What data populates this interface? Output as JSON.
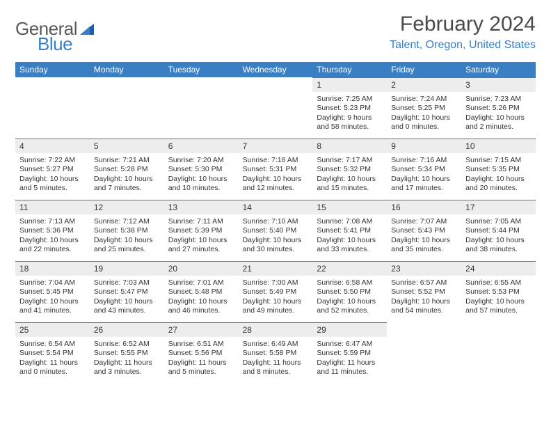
{
  "logo": {
    "text1": "General",
    "text2": "Blue",
    "color1": "#5a5a5a",
    "color2": "#3a7fc4"
  },
  "header": {
    "month": "February 2024",
    "location": "Talent, Oregon, United States"
  },
  "calendar": {
    "type": "table",
    "header_bg": "#3a7fc4",
    "header_text_color": "#ffffff",
    "daynum_bg": "#ededed",
    "daynum_border": "#3a7fc4",
    "text_color": "#333333",
    "background_color": "#ffffff",
    "font_family": "Arial",
    "daynum_fontsize": 12,
    "body_fontsize": 10.5,
    "days_of_week": [
      "Sunday",
      "Monday",
      "Tuesday",
      "Wednesday",
      "Thursday",
      "Friday",
      "Saturday"
    ],
    "weeks": [
      [
        {
          "empty": true
        },
        {
          "empty": true
        },
        {
          "empty": true
        },
        {
          "empty": true
        },
        {
          "num": "1",
          "sunrise": "Sunrise: 7:25 AM",
          "sunset": "Sunset: 5:23 PM",
          "daylight1": "Daylight: 9 hours",
          "daylight2": "and 58 minutes."
        },
        {
          "num": "2",
          "sunrise": "Sunrise: 7:24 AM",
          "sunset": "Sunset: 5:25 PM",
          "daylight1": "Daylight: 10 hours",
          "daylight2": "and 0 minutes."
        },
        {
          "num": "3",
          "sunrise": "Sunrise: 7:23 AM",
          "sunset": "Sunset: 5:26 PM",
          "daylight1": "Daylight: 10 hours",
          "daylight2": "and 2 minutes."
        }
      ],
      [
        {
          "num": "4",
          "sunrise": "Sunrise: 7:22 AM",
          "sunset": "Sunset: 5:27 PM",
          "daylight1": "Daylight: 10 hours",
          "daylight2": "and 5 minutes."
        },
        {
          "num": "5",
          "sunrise": "Sunrise: 7:21 AM",
          "sunset": "Sunset: 5:28 PM",
          "daylight1": "Daylight: 10 hours",
          "daylight2": "and 7 minutes."
        },
        {
          "num": "6",
          "sunrise": "Sunrise: 7:20 AM",
          "sunset": "Sunset: 5:30 PM",
          "daylight1": "Daylight: 10 hours",
          "daylight2": "and 10 minutes."
        },
        {
          "num": "7",
          "sunrise": "Sunrise: 7:18 AM",
          "sunset": "Sunset: 5:31 PM",
          "daylight1": "Daylight: 10 hours",
          "daylight2": "and 12 minutes."
        },
        {
          "num": "8",
          "sunrise": "Sunrise: 7:17 AM",
          "sunset": "Sunset: 5:32 PM",
          "daylight1": "Daylight: 10 hours",
          "daylight2": "and 15 minutes."
        },
        {
          "num": "9",
          "sunrise": "Sunrise: 7:16 AM",
          "sunset": "Sunset: 5:34 PM",
          "daylight1": "Daylight: 10 hours",
          "daylight2": "and 17 minutes."
        },
        {
          "num": "10",
          "sunrise": "Sunrise: 7:15 AM",
          "sunset": "Sunset: 5:35 PM",
          "daylight1": "Daylight: 10 hours",
          "daylight2": "and 20 minutes."
        }
      ],
      [
        {
          "num": "11",
          "sunrise": "Sunrise: 7:13 AM",
          "sunset": "Sunset: 5:36 PM",
          "daylight1": "Daylight: 10 hours",
          "daylight2": "and 22 minutes."
        },
        {
          "num": "12",
          "sunrise": "Sunrise: 7:12 AM",
          "sunset": "Sunset: 5:38 PM",
          "daylight1": "Daylight: 10 hours",
          "daylight2": "and 25 minutes."
        },
        {
          "num": "13",
          "sunrise": "Sunrise: 7:11 AM",
          "sunset": "Sunset: 5:39 PM",
          "daylight1": "Daylight: 10 hours",
          "daylight2": "and 27 minutes."
        },
        {
          "num": "14",
          "sunrise": "Sunrise: 7:10 AM",
          "sunset": "Sunset: 5:40 PM",
          "daylight1": "Daylight: 10 hours",
          "daylight2": "and 30 minutes."
        },
        {
          "num": "15",
          "sunrise": "Sunrise: 7:08 AM",
          "sunset": "Sunset: 5:41 PM",
          "daylight1": "Daylight: 10 hours",
          "daylight2": "and 33 minutes."
        },
        {
          "num": "16",
          "sunrise": "Sunrise: 7:07 AM",
          "sunset": "Sunset: 5:43 PM",
          "daylight1": "Daylight: 10 hours",
          "daylight2": "and 35 minutes."
        },
        {
          "num": "17",
          "sunrise": "Sunrise: 7:05 AM",
          "sunset": "Sunset: 5:44 PM",
          "daylight1": "Daylight: 10 hours",
          "daylight2": "and 38 minutes."
        }
      ],
      [
        {
          "num": "18",
          "sunrise": "Sunrise: 7:04 AM",
          "sunset": "Sunset: 5:45 PM",
          "daylight1": "Daylight: 10 hours",
          "daylight2": "and 41 minutes."
        },
        {
          "num": "19",
          "sunrise": "Sunrise: 7:03 AM",
          "sunset": "Sunset: 5:47 PM",
          "daylight1": "Daylight: 10 hours",
          "daylight2": "and 43 minutes."
        },
        {
          "num": "20",
          "sunrise": "Sunrise: 7:01 AM",
          "sunset": "Sunset: 5:48 PM",
          "daylight1": "Daylight: 10 hours",
          "daylight2": "and 46 minutes."
        },
        {
          "num": "21",
          "sunrise": "Sunrise: 7:00 AM",
          "sunset": "Sunset: 5:49 PM",
          "daylight1": "Daylight: 10 hours",
          "daylight2": "and 49 minutes."
        },
        {
          "num": "22",
          "sunrise": "Sunrise: 6:58 AM",
          "sunset": "Sunset: 5:50 PM",
          "daylight1": "Daylight: 10 hours",
          "daylight2": "and 52 minutes."
        },
        {
          "num": "23",
          "sunrise": "Sunrise: 6:57 AM",
          "sunset": "Sunset: 5:52 PM",
          "daylight1": "Daylight: 10 hours",
          "daylight2": "and 54 minutes."
        },
        {
          "num": "24",
          "sunrise": "Sunrise: 6:55 AM",
          "sunset": "Sunset: 5:53 PM",
          "daylight1": "Daylight: 10 hours",
          "daylight2": "and 57 minutes."
        }
      ],
      [
        {
          "num": "25",
          "sunrise": "Sunrise: 6:54 AM",
          "sunset": "Sunset: 5:54 PM",
          "daylight1": "Daylight: 11 hours",
          "daylight2": "and 0 minutes."
        },
        {
          "num": "26",
          "sunrise": "Sunrise: 6:52 AM",
          "sunset": "Sunset: 5:55 PM",
          "daylight1": "Daylight: 11 hours",
          "daylight2": "and 3 minutes."
        },
        {
          "num": "27",
          "sunrise": "Sunrise: 6:51 AM",
          "sunset": "Sunset: 5:56 PM",
          "daylight1": "Daylight: 11 hours",
          "daylight2": "and 5 minutes."
        },
        {
          "num": "28",
          "sunrise": "Sunrise: 6:49 AM",
          "sunset": "Sunset: 5:58 PM",
          "daylight1": "Daylight: 11 hours",
          "daylight2": "and 8 minutes."
        },
        {
          "num": "29",
          "sunrise": "Sunrise: 6:47 AM",
          "sunset": "Sunset: 5:59 PM",
          "daylight1": "Daylight: 11 hours",
          "daylight2": "and 11 minutes."
        },
        {
          "empty": true
        },
        {
          "empty": true
        }
      ]
    ]
  }
}
